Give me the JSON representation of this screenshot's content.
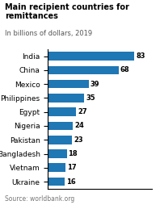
{
  "chart_data": {
    "type": "bar",
    "orientation": "horizontal",
    "title": "Main recipient countries for\nremittances",
    "subtitle": "In billions of dollars, 2019",
    "source": "Source: worldbank.org",
    "categories": [
      "India",
      "China",
      "Mexico",
      "Philippines",
      "Egypt",
      "Nigeria",
      "Pakistan",
      "Bangladesh",
      "Vietnam",
      "Ukraine"
    ],
    "values": [
      83,
      68,
      39,
      35,
      27,
      24,
      23,
      18,
      17,
      16
    ],
    "xlim": [
      0,
      100
    ],
    "data_labels": true,
    "tick_labels": "y",
    "grid": false
  }
}
